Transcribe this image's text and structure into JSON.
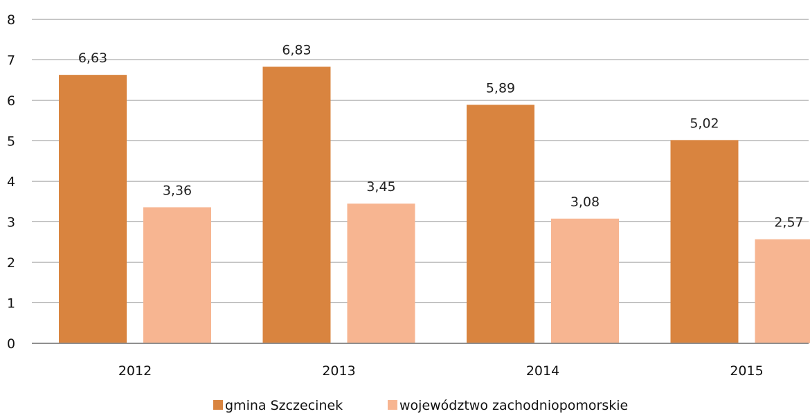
{
  "chart_data": {
    "type": "bar",
    "categories": [
      "2012",
      "2013",
      "2014",
      "2015"
    ],
    "series": [
      {
        "name": "gmina Szczecinek",
        "values": [
          6.63,
          6.83,
          5.89,
          5.02
        ],
        "labels": [
          "6,63",
          "6,83",
          "5,89",
          "5,02"
        ],
        "color": "#D9843F"
      },
      {
        "name": "województwo zachodniopomorskie",
        "values": [
          3.36,
          3.45,
          3.08,
          2.57
        ],
        "labels": [
          "3,36",
          "3,45",
          "3,08",
          "2,57"
        ],
        "color": "#F7B591"
      }
    ],
    "yticks": [
      "0",
      "1",
      "2",
      "3",
      "4",
      "5",
      "6",
      "7",
      "8"
    ],
    "ylim": [
      0,
      8
    ],
    "grid": true,
    "legend_position": "bottom",
    "title": "",
    "xlabel": "",
    "ylabel": ""
  }
}
